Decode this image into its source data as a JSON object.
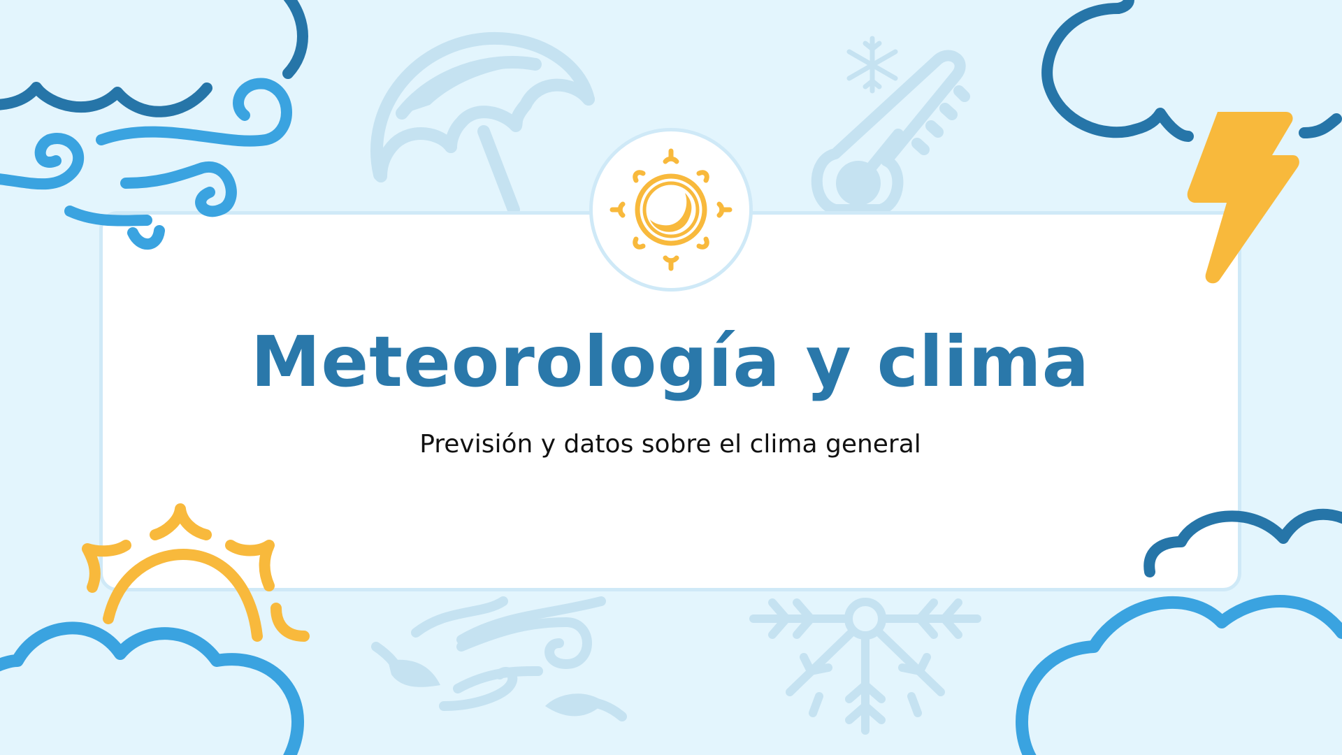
{
  "slide": {
    "title": "Meteorología y clima",
    "subtitle": "Previsión y datos sobre el clima general"
  },
  "palette": {
    "background": "#e3f5fd",
    "card": "#ffffff",
    "card_border": "#cfe9f7",
    "title_color": "#2a78aa",
    "dark_blue": "#2675a8",
    "mid_blue": "#3aa3e0",
    "faint_blue": "#c5e2f1",
    "sun_yellow": "#f8b93c"
  },
  "icons": [
    "umbrella-icon",
    "snowflake-icon",
    "thermometer-icon",
    "sun-moon-icon",
    "lightning-bolt-icon",
    "wind-icon",
    "cloud-icon",
    "sun-behind-cloud-icon",
    "leaves-wind-icon"
  ]
}
